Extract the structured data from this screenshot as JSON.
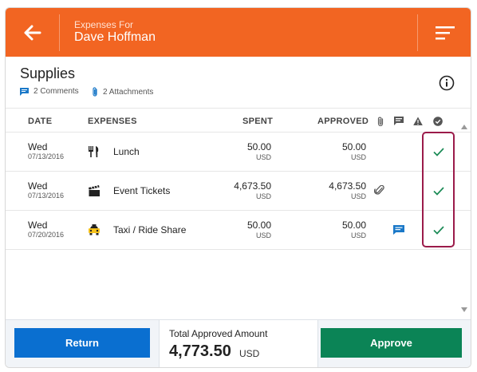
{
  "header": {
    "subtitle": "Expenses For",
    "name": "Dave Hoffman",
    "back_icon": "arrow-left-icon",
    "menu_icon": "sort-lines-icon",
    "color": "#f26522"
  },
  "section": {
    "title": "Supplies",
    "comments": "2 Comments",
    "attachments": "2 Attachments",
    "info_icon": "info-icon"
  },
  "table": {
    "headers": {
      "date": "DATE",
      "expenses": "EXPENSES",
      "spent": "SPENT",
      "approved": "APPROVED"
    },
    "header_icons": [
      "paperclip-icon",
      "comment-icon",
      "warning-icon",
      "check-circle-icon"
    ],
    "rows": [
      {
        "day": "Wed",
        "date": "07/13/2016",
        "icon": "fork-knife-icon",
        "name": "Lunch",
        "spent": "50.00",
        "spent_currency": "USD",
        "approved": "50.00",
        "approved_currency": "USD",
        "approved_check": true
      },
      {
        "day": "Wed",
        "date": "07/13/2016",
        "icon": "clapperboard-icon",
        "name": "Event Tickets",
        "spent": "4,673.50",
        "spent_currency": "USD",
        "approved": "4,673.50",
        "approved_currency": "USD",
        "has_attachment": true,
        "approved_check": true
      },
      {
        "day": "Wed",
        "date": "07/20/2016",
        "icon": "taxi-icon",
        "name": "Taxi / Ride Share",
        "spent": "50.00",
        "spent_currency": "USD",
        "approved": "50.00",
        "approved_currency": "USD",
        "has_comment": true,
        "approved_check": true
      }
    ]
  },
  "footer": {
    "return_label": "Return",
    "total_label": "Total Approved Amount",
    "total_amount": "4,773.50",
    "total_currency": "USD",
    "approve_label": "Approve"
  },
  "colors": {
    "return": "#0a6fd0",
    "approve": "#0b8456",
    "check": "#1a8a55",
    "highlight": "#9b1b4a",
    "link_icon": "#1a78c8"
  }
}
